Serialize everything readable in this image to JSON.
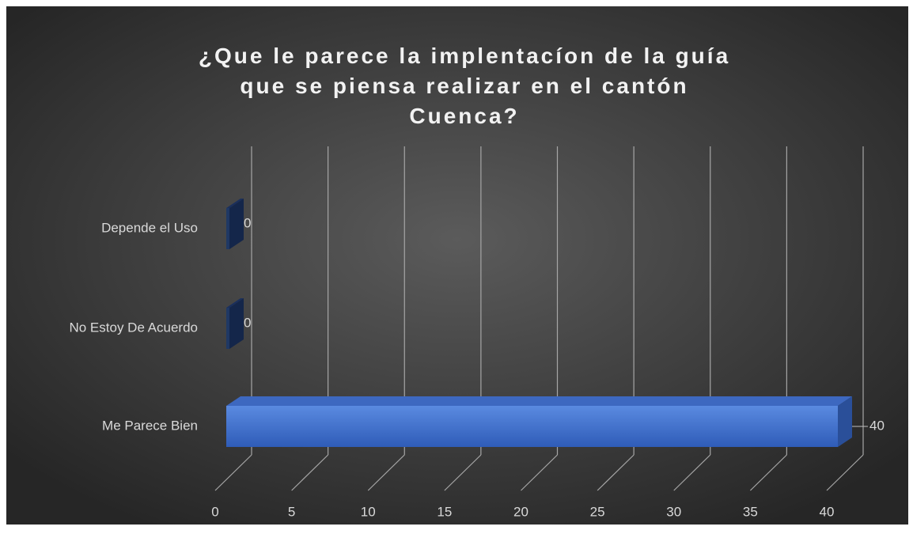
{
  "chart_data": {
    "type": "bar",
    "orientation": "horizontal",
    "title": "¿Que le parece la implentacíon de la guía que se piensa realizar en el cantón Cuenca?",
    "categories": [
      "Depende el Uso",
      "No Estoy De Acuerdo",
      "Me Parece Bien"
    ],
    "values": [
      0,
      0,
      40
    ],
    "color": "#4472c4",
    "xlim": [
      0,
      40
    ],
    "xticks": [
      0,
      5,
      10,
      15,
      20,
      25,
      30,
      35,
      40
    ],
    "grid": true
  }
}
